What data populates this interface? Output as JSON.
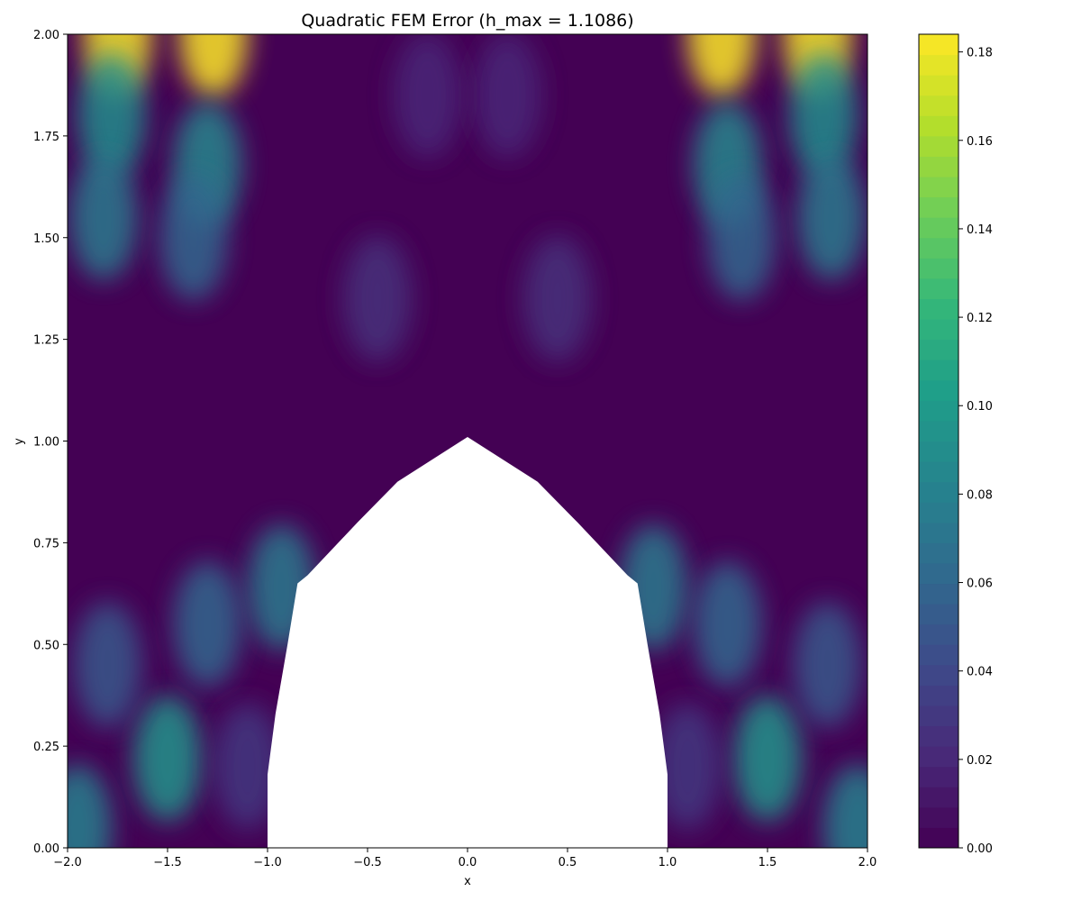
{
  "chart_data": {
    "type": "heatmap",
    "title": "Quadratic FEM Error (h_max = 1.1086)",
    "xlabel": "x",
    "ylabel": "y",
    "xlim": [
      -2.0,
      2.0
    ],
    "ylim": [
      0.0,
      2.0
    ],
    "x_ticks": [
      "−2.0",
      "−1.5",
      "−1.0",
      "−0.5",
      "0.0",
      "0.5",
      "1.0",
      "1.5",
      "2.0"
    ],
    "y_ticks": [
      "0.00",
      "0.25",
      "0.50",
      "0.75",
      "1.00",
      "1.25",
      "1.50",
      "1.75",
      "2.00"
    ],
    "colorbar": {
      "min": 0.0,
      "max": 0.184,
      "ticks": [
        "0.00",
        "0.02",
        "0.04",
        "0.06",
        "0.08",
        "0.10",
        "0.12",
        "0.14",
        "0.16",
        "0.18"
      ],
      "colormap": "viridis"
    },
    "grid": false,
    "symmetric_about_x0": true,
    "hole_boundary": [
      [
        -1.0,
        0.0
      ],
      [
        -1.0,
        0.18
      ],
      [
        -0.96,
        0.33
      ],
      [
        -0.9,
        0.5
      ],
      [
        -0.85,
        0.65
      ],
      [
        -0.8,
        0.67
      ],
      [
        -0.55,
        0.8
      ],
      [
        -0.35,
        0.9
      ],
      [
        0.0,
        1.01
      ],
      [
        0.35,
        0.9
      ],
      [
        0.55,
        0.8
      ],
      [
        0.8,
        0.67
      ],
      [
        0.85,
        0.65
      ],
      [
        0.9,
        0.5
      ],
      [
        0.96,
        0.33
      ],
      [
        1.0,
        0.18
      ],
      [
        1.0,
        0.0
      ]
    ],
    "error_features": [
      {
        "x": 1.75,
        "y": 2.0,
        "value": 0.184
      },
      {
        "x": 1.27,
        "y": 2.0,
        "value": 0.184
      },
      {
        "x": 1.78,
        "y": 1.8,
        "value": 0.09
      },
      {
        "x": 1.3,
        "y": 1.68,
        "value": 0.085
      },
      {
        "x": 1.82,
        "y": 1.55,
        "value": 0.075
      },
      {
        "x": 1.37,
        "y": 1.5,
        "value": 0.06
      },
      {
        "x": 1.5,
        "y": 0.22,
        "value": 0.095
      },
      {
        "x": 0.93,
        "y": 0.64,
        "value": 0.075
      },
      {
        "x": 1.3,
        "y": 0.55,
        "value": 0.06
      },
      {
        "x": 1.8,
        "y": 0.45,
        "value": 0.05
      },
      {
        "x": 1.95,
        "y": 0.05,
        "value": 0.08
      },
      {
        "x": 1.1,
        "y": 0.2,
        "value": 0.03
      },
      {
        "x": 0.45,
        "y": 1.35,
        "value": 0.025
      },
      {
        "x": 0.2,
        "y": 1.85,
        "value": 0.02
      }
    ],
    "colors": {
      "background": "#440154",
      "plot_bg": "#ffffff"
    }
  }
}
